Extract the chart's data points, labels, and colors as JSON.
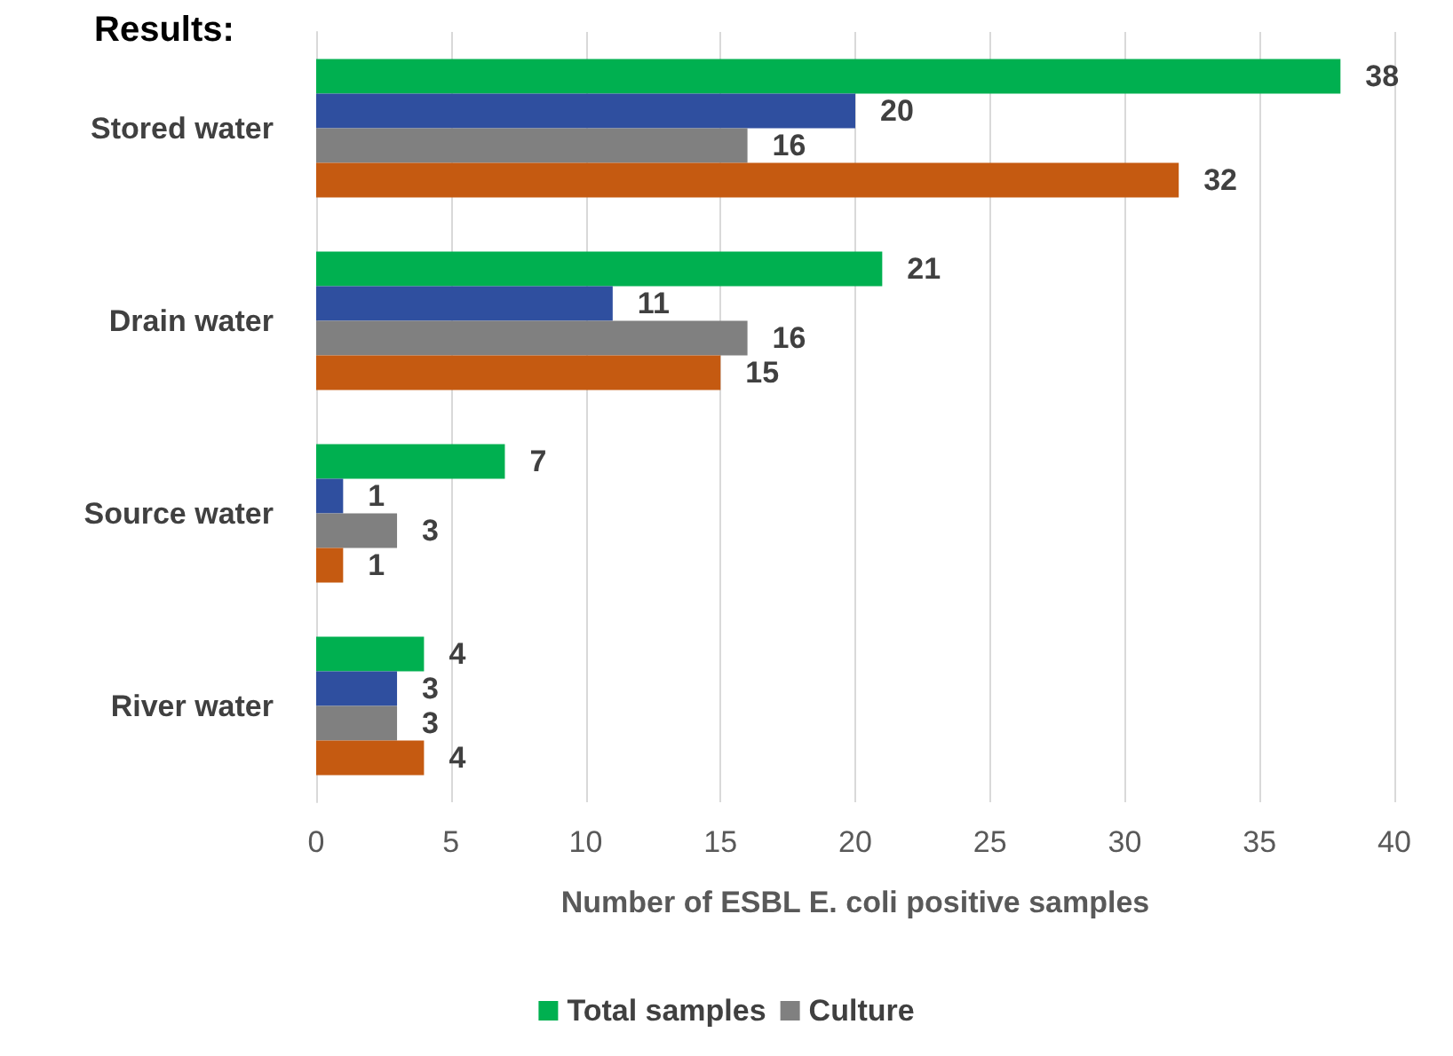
{
  "chart_data": {
    "type": "bar",
    "orientation": "horizontal",
    "title": "Results:",
    "xlabel": "Number of ESBL E. coli positive samples",
    "categories": [
      "Stored water",
      "Drain water",
      "Source water",
      "River water"
    ],
    "series": [
      {
        "name": "Total samples",
        "color": "#00b050",
        "values": [
          38,
          21,
          7,
          4
        ]
      },
      {
        "color": "#2f4f9f",
        "values": [
          20,
          11,
          1,
          3
        ]
      },
      {
        "name": "Culture",
        "color": "#808080",
        "values": [
          16,
          16,
          3,
          3
        ]
      },
      {
        "color": "#c55a11",
        "values": [
          32,
          15,
          1,
          4
        ]
      }
    ],
    "xlim": [
      0,
      40
    ],
    "xticks": [
      0,
      5,
      10,
      15,
      20,
      25,
      30,
      35,
      40
    ],
    "grid": "x",
    "legend": "bottom",
    "data_labels": true
  }
}
